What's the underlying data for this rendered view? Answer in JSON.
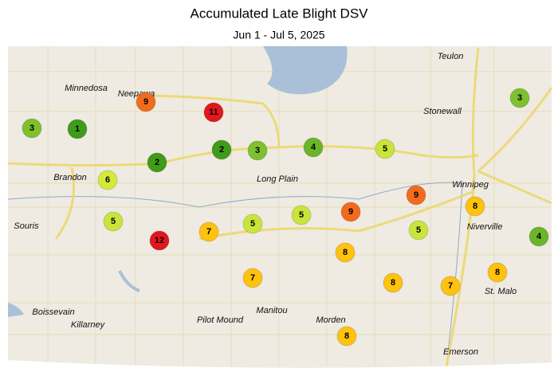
{
  "title": "Accumulated Late Blight DSV",
  "subtitle": "Jun 1 - Jul 5, 2025",
  "places": [
    {
      "name": "Teulon"
    },
    {
      "name": "Minnedosa"
    },
    {
      "name": "Neepawa"
    },
    {
      "name": "Stonewall"
    },
    {
      "name": "Brandon"
    },
    {
      "name": "Long Plain"
    },
    {
      "name": "Winnipeg"
    },
    {
      "name": "Souris"
    },
    {
      "name": "Niverville"
    },
    {
      "name": "St. Malo"
    },
    {
      "name": "Boissevain"
    },
    {
      "name": "Killarney"
    },
    {
      "name": "Pilot Mound"
    },
    {
      "name": "Manitou"
    },
    {
      "name": "Morden"
    },
    {
      "name": "Emerson"
    }
  ],
  "stations": [
    {
      "value": 3,
      "color": "#7dc12e"
    },
    {
      "value": 1,
      "color": "#3f9c1a"
    },
    {
      "value": 9,
      "color": "#f26b1d"
    },
    {
      "value": 11,
      "color": "#e3161b"
    },
    {
      "value": 2,
      "color": "#3f9c1a"
    },
    {
      "value": 2,
      "color": "#3f9c1a"
    },
    {
      "value": 3,
      "color": "#7dc12e"
    },
    {
      "value": 4,
      "color": "#6bb52a"
    },
    {
      "value": 5,
      "color": "#c9e43c"
    },
    {
      "value": 3,
      "color": "#7dc12e"
    },
    {
      "value": 6,
      "color": "#d6e936"
    },
    {
      "value": 5,
      "color": "#c9e43c"
    },
    {
      "value": 12,
      "color": "#e3161b"
    },
    {
      "value": 7,
      "color": "#ffc20f"
    },
    {
      "value": 5,
      "color": "#c9e43c"
    },
    {
      "value": 5,
      "color": "#c9e43c"
    },
    {
      "value": 9,
      "color": "#f26b1d"
    },
    {
      "value": 9,
      "color": "#f26b1d"
    },
    {
      "value": 8,
      "color": "#ffc20f"
    },
    {
      "value": 5,
      "color": "#c9e43c"
    },
    {
      "value": 4,
      "color": "#6bb52a"
    },
    {
      "value": 8,
      "color": "#ffc20f"
    },
    {
      "value": 7,
      "color": "#ffc20f"
    },
    {
      "value": 8,
      "color": "#ffc20f"
    },
    {
      "value": 7,
      "color": "#ffc20f"
    },
    {
      "value": 8,
      "color": "#ffc20f"
    },
    {
      "value": 8,
      "color": "#ffc20f"
    }
  ]
}
